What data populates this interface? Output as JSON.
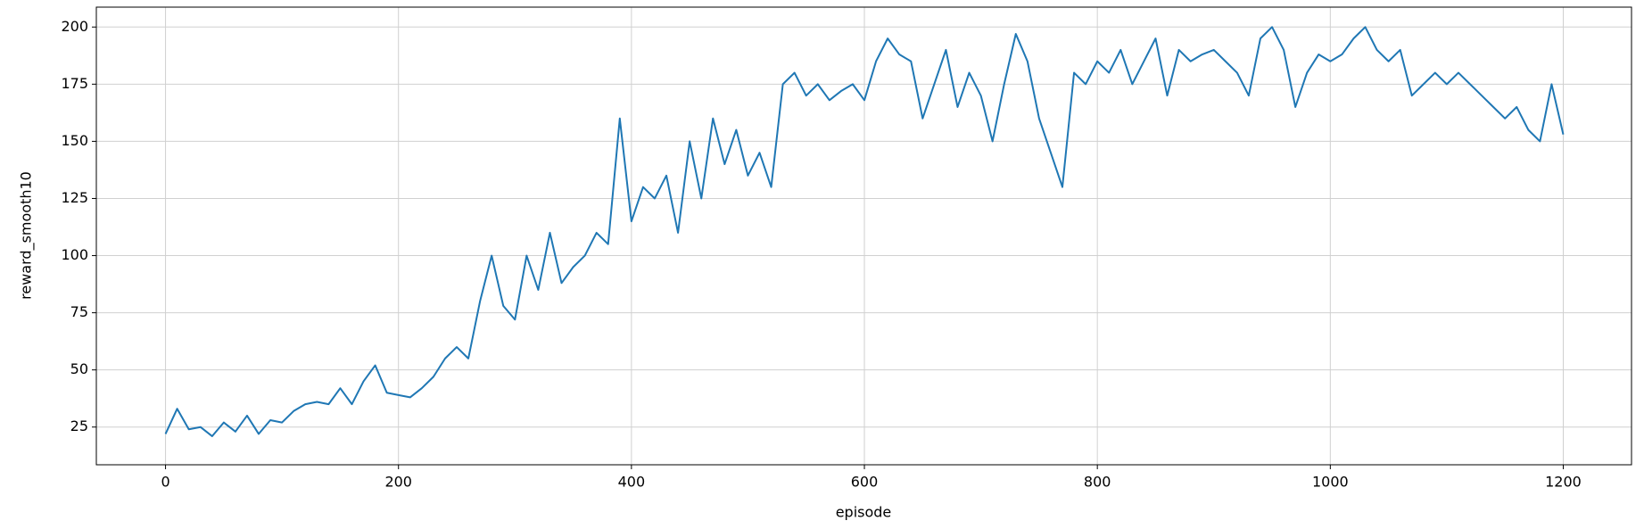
{
  "chart_data": {
    "type": "line",
    "x_label": "episode",
    "y_label": "reward_smooth10",
    "x": [
      0,
      10,
      20,
      30,
      40,
      50,
      60,
      70,
      80,
      90,
      100,
      110,
      120,
      130,
      140,
      150,
      160,
      170,
      180,
      190,
      200,
      210,
      220,
      230,
      240,
      250,
      260,
      270,
      280,
      290,
      300,
      310,
      320,
      330,
      340,
      350,
      360,
      370,
      380,
      390,
      400,
      410,
      420,
      430,
      440,
      450,
      460,
      470,
      480,
      490,
      500,
      510,
      520,
      530,
      540,
      550,
      560,
      570,
      580,
      590,
      600,
      610,
      620,
      630,
      640,
      650,
      660,
      670,
      680,
      690,
      700,
      710,
      720,
      730,
      740,
      750,
      760,
      770,
      780,
      790,
      800,
      810,
      820,
      830,
      840,
      850,
      860,
      870,
      880,
      890,
      900,
      910,
      920,
      930,
      940,
      950,
      960,
      970,
      980,
      990,
      1000,
      1010,
      1020,
      1030,
      1040,
      1050,
      1060,
      1070,
      1080,
      1090,
      1100,
      1110,
      1120,
      1130,
      1140,
      1150,
      1160,
      1170,
      1180,
      1190,
      1200
    ],
    "values": [
      22,
      33,
      24,
      25,
      21,
      27,
      23,
      30,
      22,
      28,
      27,
      32,
      35,
      36,
      35,
      42,
      35,
      45,
      52,
      40,
      39,
      38,
      42,
      47,
      55,
      60,
      55,
      80,
      100,
      78,
      72,
      100,
      85,
      110,
      88,
      95,
      100,
      110,
      105,
      160,
      115,
      130,
      125,
      135,
      110,
      150,
      125,
      160,
      140,
      155,
      135,
      145,
      130,
      175,
      180,
      170,
      175,
      168,
      172,
      175,
      168,
      185,
      195,
      188,
      185,
      160,
      175,
      190,
      165,
      180,
      170,
      150,
      175,
      197,
      185,
      160,
      145,
      130,
      180,
      175,
      185,
      180,
      190,
      175,
      185,
      195,
      170,
      190,
      185,
      188,
      190,
      185,
      180,
      170,
      195,
      200,
      190,
      165,
      180,
      188,
      185,
      188,
      195,
      200,
      190,
      185,
      190,
      170,
      175,
      180,
      175,
      180,
      175,
      170,
      165,
      160,
      165,
      155,
      150,
      175,
      153
    ],
    "color": "#1f77b4",
    "xlim": [
      -59.4,
      1258.6
    ],
    "ylim": [
      8.5,
      208.7
    ],
    "xticks": [
      0,
      200,
      400,
      600,
      800,
      1000,
      1200
    ],
    "yticks": [
      25,
      50,
      75,
      100,
      125,
      150,
      175,
      200
    ],
    "grid": true
  }
}
